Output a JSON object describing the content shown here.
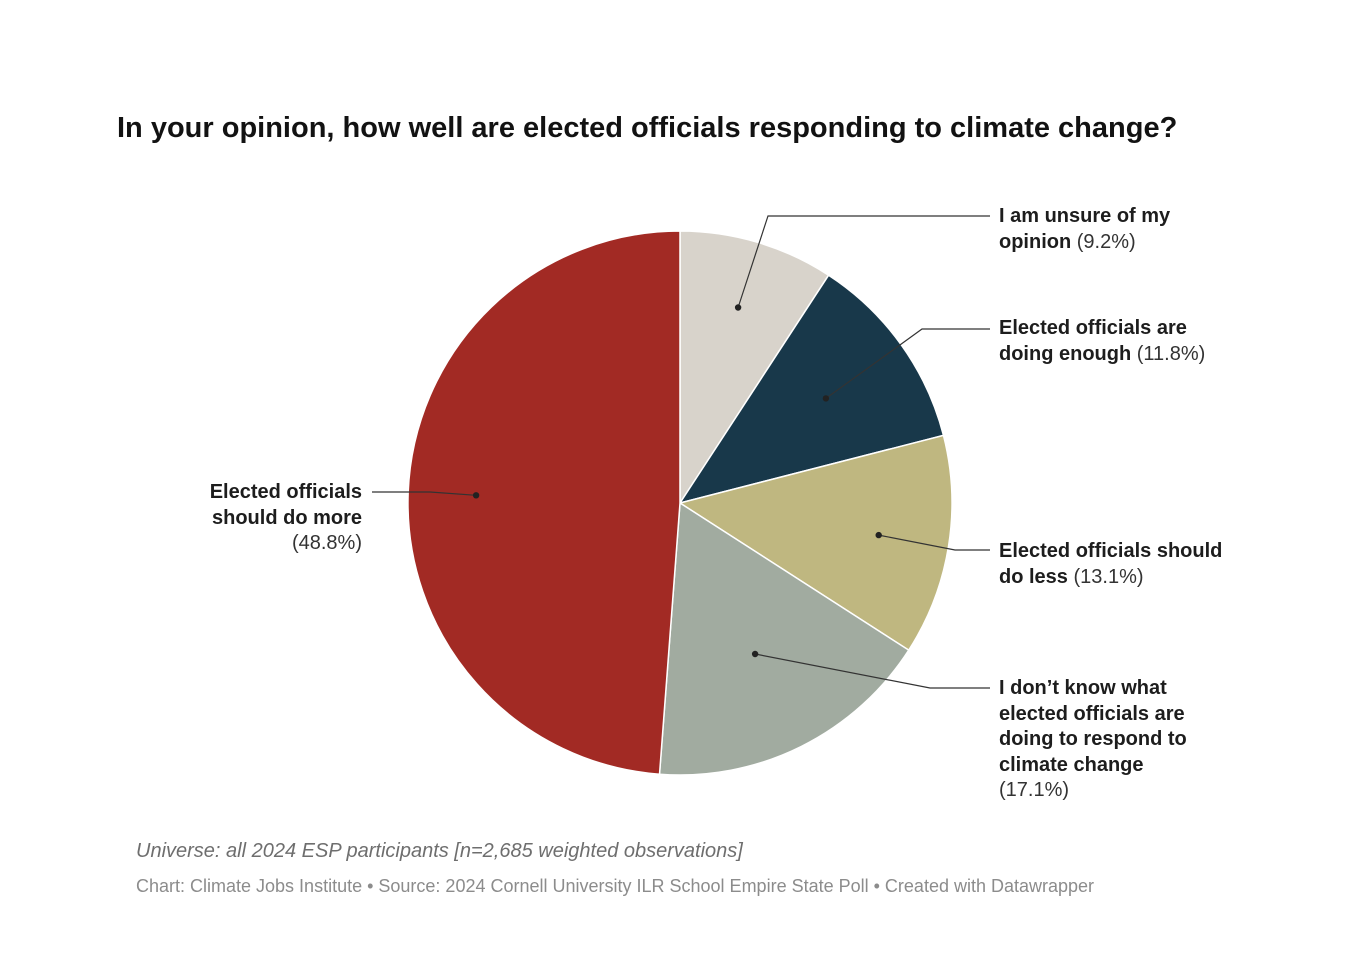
{
  "chart_data": {
    "type": "pie",
    "title": "In your opinion, how well are elected officials responding to climate change?",
    "slices": [
      {
        "label": "I am unsure of my opinion",
        "pct_text": "(9.2%)",
        "value": 9.2,
        "color": "#d8d3cb"
      },
      {
        "label": "Elected officials are doing enough",
        "pct_text": "(11.8%)",
        "value": 11.8,
        "color": "#18384a"
      },
      {
        "label": "Elected officials should do less",
        "pct_text": "(13.1%)",
        "value": 13.1,
        "color": "#bfb780"
      },
      {
        "label": "I don’t know what elected officials are doing to respond to climate change",
        "pct_text": "(17.1%)",
        "value": 17.1,
        "color": "#a1aba0"
      },
      {
        "label": "Elected officials should do more",
        "pct_text": "(48.8%)",
        "value": 48.8,
        "color": "#a22a24"
      }
    ],
    "start": "12 o'clock",
    "direction": "clockwise"
  },
  "footer": {
    "universe": "Universe: all 2024 ESP participants [n=2,685 weighted observations]",
    "source": "Chart: Climate Jobs Institute • Source: 2024 Cornell University ILR School Empire State Poll  • Created with Datawrapper"
  }
}
